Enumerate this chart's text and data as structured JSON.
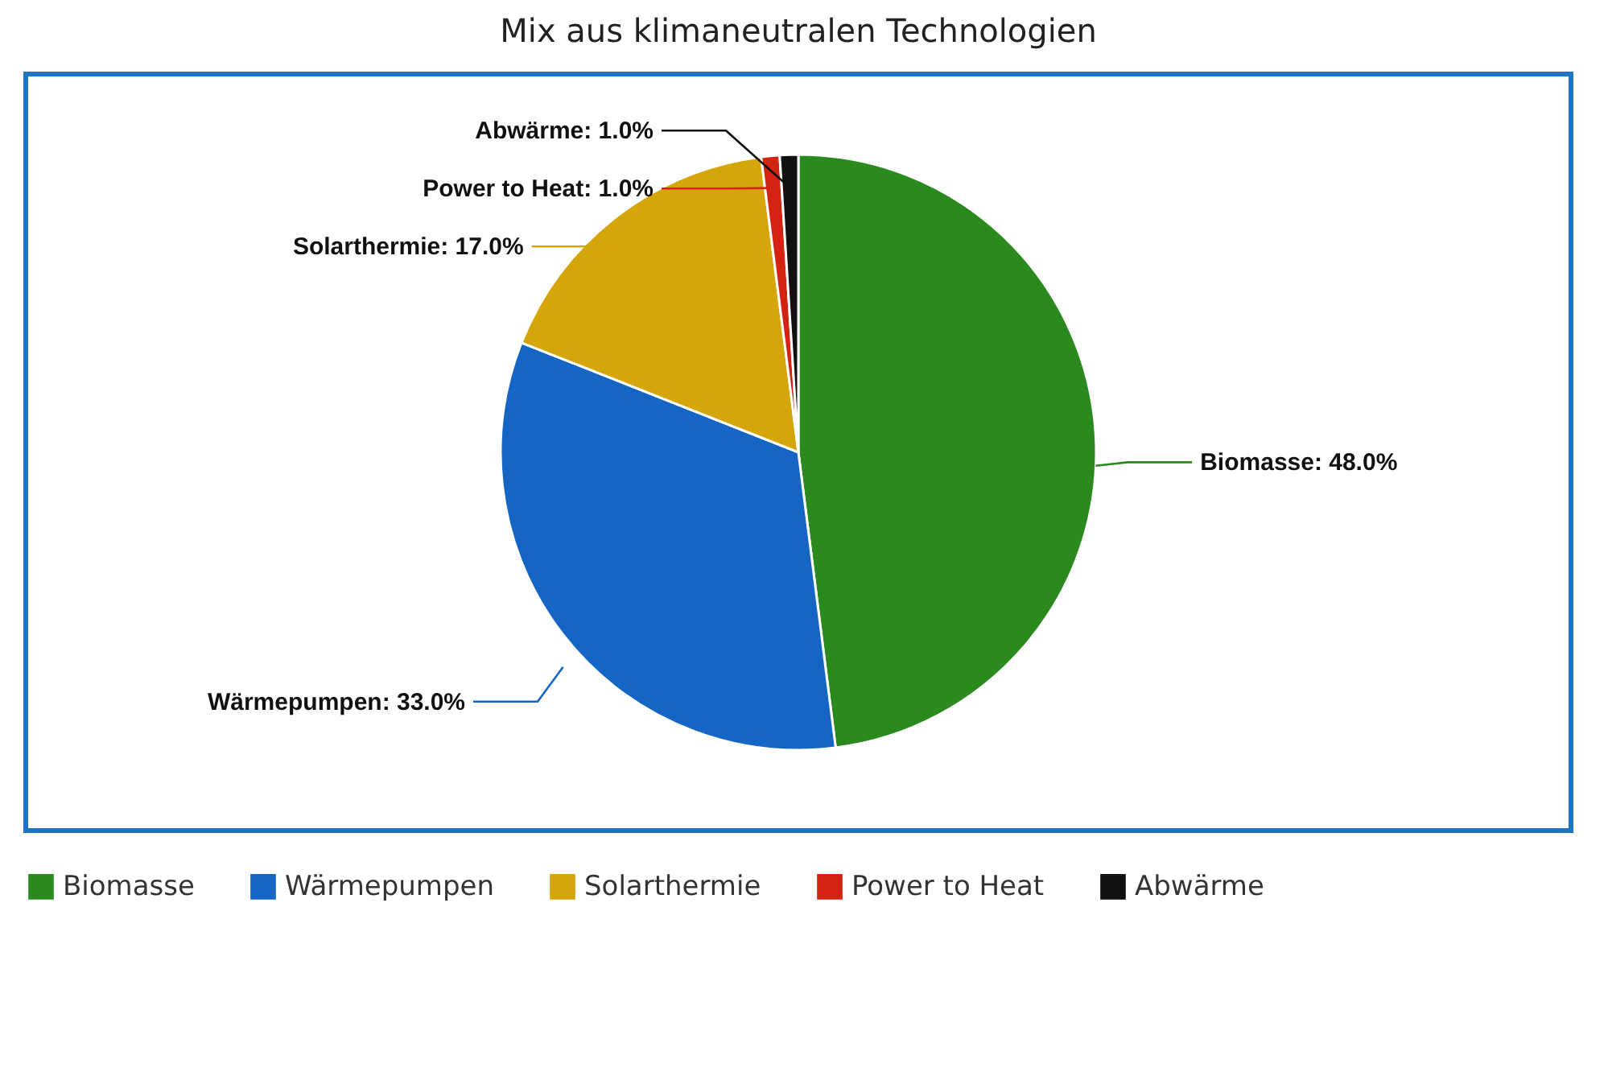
{
  "chart_data": {
    "type": "pie",
    "title": "Mix aus klimaneutralen Technologien",
    "categories": [
      "Biomasse",
      "Wärmepumpen",
      "Solarthermie",
      "Power to Heat",
      "Abwärme"
    ],
    "values": [
      48.0,
      33.0,
      17.0,
      1.0,
      1.0
    ],
    "colors": [
      "#2a8a1e",
      "#1565c4",
      "#d6a50a",
      "#d42312",
      "#111111"
    ],
    "value_labels": [
      "Biomasse: 48.0%",
      "Wärmepumpen: 33.0%",
      "Solarthermie: 17.0%",
      "Power to Heat: 1.0%",
      "Abwärme: 1.0%"
    ],
    "legend": "bottom"
  }
}
